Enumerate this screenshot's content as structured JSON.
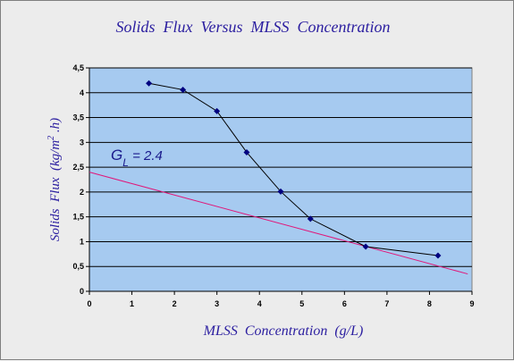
{
  "chart_data": {
    "type": "line",
    "title": "Solids  Flux  Versus  MLSS  Concentration",
    "xlabel": "MLSS  Concentration  (g/L)",
    "ylabel": {
      "prefix": "Solids  Flux  (kg/m",
      "superscript": "2",
      "suffix": " .h)"
    },
    "xlim": [
      0,
      9
    ],
    "ylim": [
      0,
      4.5
    ],
    "x_ticks": [
      "0",
      "1",
      "2",
      "3",
      "4",
      "5",
      "6",
      "7",
      "8",
      "9"
    ],
    "y_ticks": [
      "0",
      "0,5",
      "1",
      "1,5",
      "2",
      "2,5",
      "3",
      "3,5",
      "4",
      "4,5"
    ],
    "grid": true,
    "legend": "none",
    "colors": {
      "plot_background": "#a6caf0",
      "data_line": "#000000",
      "marker": "#000080",
      "loading_line": "#e0187a",
      "title": "#2b1ea0"
    },
    "series": [
      {
        "x": [
          1.4,
          2.2,
          3.0,
          3.7,
          4.5,
          5.2,
          6.5,
          8.2
        ],
        "y": [
          4.19,
          4.06,
          3.63,
          2.8,
          2.01,
          1.46,
          0.9,
          0.72
        ]
      }
    ],
    "loading_line": {
      "x": [
        0,
        8.9
      ],
      "y": [
        2.4,
        0.35
      ]
    },
    "annotation": {
      "symbol": "G",
      "subscript": "L",
      "text": " = 2.4"
    }
  }
}
